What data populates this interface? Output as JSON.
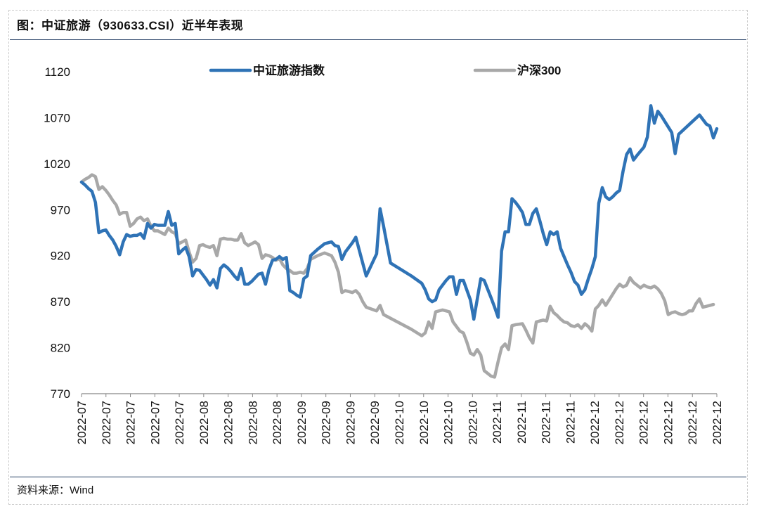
{
  "header": {
    "title": "图：中证旅游（930633.CSI）近半年表现"
  },
  "footer": {
    "source": "资料来源：Wind"
  },
  "chart_data": {
    "type": "line",
    "title": "中证旅游（930633.CSI）近半年表现",
    "xlabel": "",
    "ylabel": "",
    "ylim": [
      770,
      1120
    ],
    "yticks": [
      770,
      820,
      870,
      920,
      970,
      1020,
      1070,
      1120
    ],
    "xtick_labels": [
      "2022-07",
      "2022-07",
      "2022-07",
      "2022-07",
      "2022-07",
      "2022-08",
      "2022-08",
      "2022-08",
      "2022-08",
      "2022-09",
      "2022-09",
      "2022-09",
      "2022-09",
      "2022-10",
      "2022-10",
      "2022-10",
      "2022-10",
      "2022-11",
      "2022-11",
      "2022-11",
      "2022-11",
      "2022-12",
      "2022-12",
      "2022-12",
      "2022-12",
      "2022-12",
      "2022-12"
    ],
    "x_count": 125,
    "legend_position": "top",
    "series": [
      {
        "name": "中证旅游指数",
        "color": "#2f73b6",
        "points": [
          [
            0,
            1000
          ],
          [
            1,
            997
          ],
          [
            2,
            993
          ],
          [
            3,
            990
          ],
          [
            4,
            978
          ],
          [
            5,
            945
          ],
          [
            6,
            947
          ],
          [
            7,
            948
          ],
          [
            8,
            942
          ],
          [
            9,
            937
          ],
          [
            10,
            930
          ],
          [
            11,
            921
          ],
          [
            12,
            935
          ],
          [
            13,
            943
          ],
          [
            14,
            941
          ],
          [
            15,
            942
          ],
          [
            16,
            942
          ],
          [
            17,
            944
          ],
          [
            18,
            939
          ],
          [
            19,
            955
          ],
          [
            20,
            950
          ],
          [
            21,
            954
          ],
          [
            22,
            953
          ],
          [
            23,
            953
          ],
          [
            24,
            953
          ],
          [
            25,
            968
          ],
          [
            26,
            953
          ],
          [
            27,
            955
          ],
          [
            28,
            922
          ],
          [
            29,
            926
          ],
          [
            30,
            929
          ],
          [
            31,
            919
          ],
          [
            32,
            898
          ],
          [
            33,
            905
          ],
          [
            34,
            904
          ],
          [
            35,
            899
          ],
          [
            36,
            894
          ],
          [
            37,
            888
          ],
          [
            38,
            894
          ],
          [
            39,
            885
          ],
          [
            40,
            906
          ],
          [
            41,
            910
          ],
          [
            42,
            907
          ],
          [
            43,
            903
          ],
          [
            44,
            898
          ],
          [
            45,
            894
          ],
          [
            46,
            906
          ],
          [
            47,
            889
          ],
          [
            48,
            889
          ],
          [
            49,
            892
          ],
          [
            50,
            896
          ],
          [
            51,
            900
          ],
          [
            52,
            901
          ],
          [
            53,
            889
          ],
          [
            54,
            905
          ],
          [
            55,
            915
          ],
          [
            56,
            916
          ],
          [
            57,
            919
          ],
          [
            58,
            916
          ],
          [
            59,
            918
          ],
          [
            60,
            882
          ],
          [
            61,
            880
          ],
          [
            62,
            877
          ],
          [
            63,
            875
          ],
          [
            64,
            895
          ],
          [
            65,
            898
          ],
          [
            66,
            920
          ],
          [
            68,
            927
          ],
          [
            70,
            933
          ],
          [
            72,
            935
          ],
          [
            73,
            931
          ],
          [
            74,
            930
          ],
          [
            75,
            916
          ],
          [
            76,
            924
          ],
          [
            78,
            934
          ],
          [
            79,
            940
          ],
          [
            81,
            912
          ],
          [
            82,
            898
          ],
          [
            85,
            922
          ],
          [
            86,
            971
          ],
          [
            87,
            952
          ],
          [
            89,
            912
          ],
          [
            95,
            898
          ],
          [
            98,
            890
          ],
          [
            99,
            883
          ],
          [
            100,
            873
          ],
          [
            101,
            870
          ],
          [
            102,
            872
          ],
          [
            103,
            883
          ],
          [
            104,
            888
          ],
          [
            105,
            893
          ],
          [
            106,
            897
          ],
          [
            107,
            897
          ],
          [
            108,
            878
          ],
          [
            109,
            893
          ],
          [
            110,
            893
          ],
          [
            112,
            872
          ],
          [
            113,
            851
          ],
          [
            115,
            895
          ],
          [
            116,
            893
          ],
          [
            118,
            874
          ],
          [
            119,
            864
          ],
          [
            120,
            853
          ],
          [
            121,
            925
          ],
          [
            122,
            946
          ],
          [
            123,
            946
          ],
          [
            124,
            982
          ],
          [
            125,
            978
          ],
          [
            126,
            973
          ],
          [
            127,
            967
          ],
          [
            128,
            954
          ],
          [
            129,
            954
          ],
          [
            130,
            966
          ],
          [
            131,
            971
          ],
          [
            132,
            958
          ],
          [
            133,
            944
          ],
          [
            134,
            932
          ],
          [
            135,
            946
          ],
          [
            136,
            943
          ],
          [
            137,
            946
          ],
          [
            138,
            928
          ],
          [
            139,
            919
          ],
          [
            140,
            910
          ],
          [
            141,
            902
          ],
          [
            142,
            892
          ],
          [
            143,
            888
          ],
          [
            144,
            878
          ],
          [
            145,
            883
          ],
          [
            146,
            895
          ],
          [
            147,
            906
          ],
          [
            148,
            919
          ],
          [
            149,
            977
          ],
          [
            150,
            994
          ],
          [
            151,
            984
          ],
          [
            152,
            981
          ],
          [
            153,
            984
          ],
          [
            154,
            988
          ],
          [
            155,
            991
          ],
          [
            156,
            1012
          ],
          [
            157,
            1030
          ],
          [
            158,
            1036
          ],
          [
            159,
            1024
          ],
          [
            160,
            1029
          ],
          [
            162,
            1038
          ],
          [
            163,
            1049
          ],
          [
            164,
            1083
          ],
          [
            165,
            1064
          ],
          [
            166,
            1077
          ],
          [
            167,
            1072
          ],
          [
            168,
            1066
          ],
          [
            169,
            1060
          ],
          [
            170,
            1054
          ],
          [
            171,
            1031
          ],
          [
            172,
            1052
          ],
          [
            176,
            1066
          ],
          [
            178,
            1073
          ],
          [
            180,
            1063
          ],
          [
            181,
            1061
          ],
          [
            182,
            1048
          ],
          [
            183,
            1058
          ]
        ]
      },
      {
        "name": "沪深300",
        "color": "#a8a8a8",
        "points": [
          [
            0,
            1000
          ],
          [
            1,
            1003
          ],
          [
            2,
            1005
          ],
          [
            3,
            1008
          ],
          [
            4,
            1006
          ],
          [
            5,
            992
          ],
          [
            6,
            995
          ],
          [
            7,
            991
          ],
          [
            8,
            986
          ],
          [
            9,
            980
          ],
          [
            10,
            975
          ],
          [
            11,
            965
          ],
          [
            12,
            967
          ],
          [
            13,
            967
          ],
          [
            14,
            952
          ],
          [
            15,
            955
          ],
          [
            16,
            960
          ],
          [
            17,
            962
          ],
          [
            18,
            958
          ],
          [
            19,
            960
          ],
          [
            20,
            952
          ],
          [
            21,
            947
          ],
          [
            22,
            947
          ],
          [
            23,
            945
          ],
          [
            24,
            943
          ],
          [
            25,
            950
          ],
          [
            26,
            946
          ],
          [
            27,
            944
          ],
          [
            28,
            933
          ],
          [
            29,
            935
          ],
          [
            30,
            937
          ],
          [
            31,
            924
          ],
          [
            32,
            913
          ],
          [
            33,
            917
          ],
          [
            34,
            931
          ],
          [
            35,
            932
          ],
          [
            36,
            930
          ],
          [
            37,
            929
          ],
          [
            38,
            931
          ],
          [
            39,
            920
          ],
          [
            40,
            938
          ],
          [
            41,
            939
          ],
          [
            42,
            938
          ],
          [
            43,
            938
          ],
          [
            44,
            937
          ],
          [
            45,
            937
          ],
          [
            46,
            944
          ],
          [
            47,
            934
          ],
          [
            48,
            931
          ],
          [
            49,
            933
          ],
          [
            50,
            935
          ],
          [
            51,
            932
          ],
          [
            52,
            917
          ],
          [
            53,
            921
          ],
          [
            54,
            920
          ],
          [
            55,
            918
          ],
          [
            56,
            915
          ],
          [
            57,
            917
          ],
          [
            58,
            910
          ],
          [
            59,
            906
          ],
          [
            60,
            904
          ],
          [
            61,
            901
          ],
          [
            62,
            901
          ],
          [
            63,
            902
          ],
          [
            64,
            901
          ],
          [
            65,
            906
          ],
          [
            66,
            916
          ],
          [
            68,
            920
          ],
          [
            70,
            923
          ],
          [
            72,
            920
          ],
          [
            73,
            913
          ],
          [
            74,
            902
          ],
          [
            75,
            880
          ],
          [
            76,
            882
          ],
          [
            78,
            880
          ],
          [
            79,
            882
          ],
          [
            80,
            878
          ],
          [
            81,
            870
          ],
          [
            82,
            864
          ],
          [
            85,
            860
          ],
          [
            86,
            866
          ],
          [
            87,
            856
          ],
          [
            89,
            852
          ],
          [
            95,
            840
          ],
          [
            98,
            833
          ],
          [
            99,
            836
          ],
          [
            100,
            848
          ],
          [
            101,
            841
          ],
          [
            102,
            859
          ],
          [
            104,
            861
          ],
          [
            106,
            859
          ],
          [
            107,
            848
          ],
          [
            108,
            843
          ],
          [
            109,
            838
          ],
          [
            110,
            836
          ],
          [
            111,
            826
          ],
          [
            112,
            814
          ],
          [
            113,
            812
          ],
          [
            114,
            818
          ],
          [
            115,
            812
          ],
          [
            116,
            795
          ],
          [
            117,
            792
          ],
          [
            118,
            789
          ],
          [
            119,
            788
          ],
          [
            120,
            805
          ],
          [
            121,
            820
          ],
          [
            122,
            824
          ],
          [
            123,
            818
          ],
          [
            124,
            844
          ],
          [
            125,
            845
          ],
          [
            127,
            846
          ],
          [
            128,
            839
          ],
          [
            129,
            831
          ],
          [
            130,
            825
          ],
          [
            131,
            848
          ],
          [
            132,
            849
          ],
          [
            133,
            850
          ],
          [
            134,
            849
          ],
          [
            135,
            865
          ],
          [
            136,
            858
          ],
          [
            137,
            855
          ],
          [
            138,
            851
          ],
          [
            139,
            848
          ],
          [
            140,
            847
          ],
          [
            141,
            844
          ],
          [
            142,
            843
          ],
          [
            143,
            845
          ],
          [
            144,
            841
          ],
          [
            145,
            846
          ],
          [
            146,
            843
          ],
          [
            147,
            838
          ],
          [
            148,
            862
          ],
          [
            149,
            866
          ],
          [
            150,
            872
          ],
          [
            151,
            866
          ],
          [
            152,
            872
          ],
          [
            153,
            878
          ],
          [
            154,
            884
          ],
          [
            155,
            889
          ],
          [
            156,
            886
          ],
          [
            157,
            888
          ],
          [
            158,
            896
          ],
          [
            159,
            891
          ],
          [
            160,
            888
          ],
          [
            161,
            885
          ],
          [
            162,
            888
          ],
          [
            163,
            886
          ],
          [
            164,
            885
          ],
          [
            165,
            887
          ],
          [
            166,
            884
          ],
          [
            167,
            879
          ],
          [
            168,
            871
          ],
          [
            169,
            856
          ],
          [
            170,
            858
          ],
          [
            171,
            859
          ],
          [
            172,
            857
          ],
          [
            173,
            856
          ],
          [
            174,
            857
          ],
          [
            175,
            860
          ],
          [
            176,
            860
          ],
          [
            177,
            868
          ],
          [
            178,
            873
          ],
          [
            179,
            864
          ],
          [
            181,
            866
          ],
          [
            182,
            867
          ]
        ]
      }
    ]
  }
}
